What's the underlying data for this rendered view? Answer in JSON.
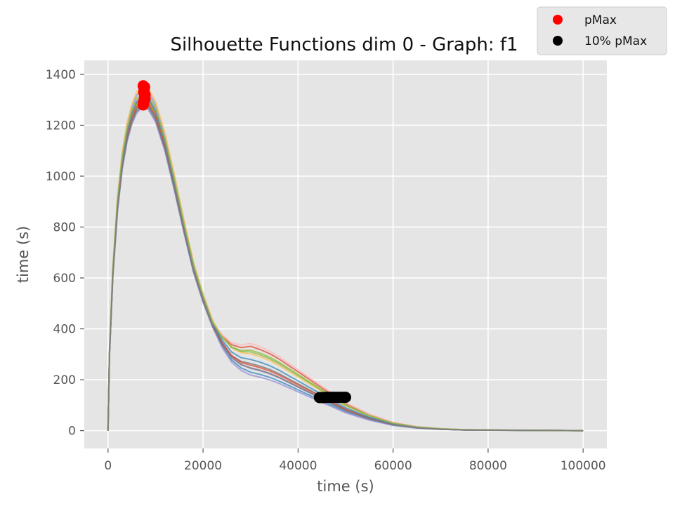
{
  "chart_data": {
    "type": "line",
    "title": "Silhouette Functions dim 0 - Graph:  f1",
    "xlabel": "time (s)",
    "ylabel": "time (s)",
    "xlim": [
      -5000,
      105000
    ],
    "ylim": [
      -70,
      1455
    ],
    "x_ticks": [
      0,
      20000,
      40000,
      60000,
      80000,
      100000
    ],
    "x_tick_labels": [
      "0",
      "20000",
      "40000",
      "60000",
      "80000",
      "100000"
    ],
    "y_ticks": [
      0,
      200,
      400,
      600,
      800,
      1000,
      1200,
      1400
    ],
    "y_tick_labels": [
      "0",
      "200",
      "400",
      "600",
      "800",
      "1000",
      "1200",
      "1400"
    ],
    "grid": true,
    "background": "#e5e5e5",
    "legend_position": "top-right",
    "legend": [
      {
        "label": "pMax",
        "color": "#ff0000",
        "marker": "circle"
      },
      {
        "label": "10% pMax",
        "color": "#000000",
        "marker": "circle"
      }
    ],
    "series_shape": {
      "x": [
        0,
        300,
        1000,
        2000,
        3000,
        4000,
        5000,
        6000,
        7000,
        7600,
        8500,
        10000,
        12000,
        14000,
        16000,
        18000,
        20000,
        22000,
        24000,
        26000,
        28000,
        30000,
        32000,
        34000,
        36000,
        38000,
        40000,
        42000,
        44000,
        46000,
        48000,
        50000,
        55000,
        60000,
        65000,
        70000,
        75000,
        80000,
        90000,
        100000
      ],
      "y": [
        0,
        300,
        620,
        890,
        1060,
        1170,
        1240,
        1285,
        1305,
        1310,
        1300,
        1250,
        1130,
        970,
        800,
        640,
        520,
        420,
        350,
        300,
        275,
        265,
        255,
        242,
        225,
        205,
        185,
        165,
        145,
        125,
        105,
        85,
        50,
        25,
        12,
        6,
        3,
        2,
        1,
        0
      ]
    },
    "series": [
      {
        "color": "#e24a33",
        "scale": 1.0,
        "tail": 1.25
      },
      {
        "color": "#348abd",
        "scale": 0.985,
        "tail": 0.88
      },
      {
        "color": "#988ed5",
        "scale": 1.025,
        "tail": 0.9
      },
      {
        "color": "#777777",
        "scale": 0.975,
        "tail": 1.02
      },
      {
        "color": "#fbc15e",
        "scale": 1.035,
        "tail": 1.1
      },
      {
        "color": "#8eba42",
        "scale": 0.995,
        "tail": 1.2
      },
      {
        "color": "#ffb5b8",
        "scale": 1.01,
        "tail": 1.28
      },
      {
        "color": "#e24a33",
        "scale": 0.99,
        "tail": 0.98
      },
      {
        "color": "#348abd",
        "scale": 1.005,
        "tail": 1.05
      },
      {
        "color": "#988ed5",
        "scale": 0.97,
        "tail": 0.85
      },
      {
        "color": "#8eba42",
        "scale": 1.015,
        "tail": 1.15
      },
      {
        "color": "#777777",
        "scale": 0.98,
        "tail": 0.95
      }
    ],
    "pmax_points": {
      "color": "#ff0000",
      "x": [
        7400,
        7500,
        7600,
        7700,
        7800,
        7500,
        7600,
        7700,
        7400,
        7800,
        7600,
        7500
      ],
      "y": [
        1280,
        1290,
        1300,
        1310,
        1320,
        1330,
        1340,
        1350,
        1355,
        1305,
        1295,
        1285
      ]
    },
    "ten_pct_pmax_points": {
      "color": "#000000",
      "x": [
        44500,
        45000,
        45500,
        46000,
        46500,
        47000,
        47500,
        48000,
        48500,
        49000,
        49500,
        50000
      ],
      "y": [
        130,
        130,
        130,
        131,
        131,
        131,
        131,
        131,
        131,
        131,
        131,
        131
      ]
    }
  }
}
